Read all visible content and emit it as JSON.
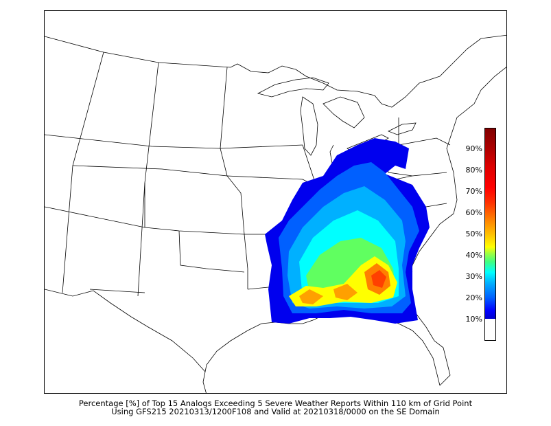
{
  "caption": {
    "line1": "Percentage [%] of Top 15 Analogs Exceeding 5 Severe Weather Reports Within 110 km of Grid Point",
    "line2": "Using GFS215 20210313/1200F108 and Valid at 20210318/0000 on the SE Domain"
  },
  "colorbar": {
    "labels": [
      "90%",
      "80%",
      "70%",
      "60%",
      "50%",
      "40%",
      "30%",
      "20%",
      "10%"
    ],
    "colors": {
      "low": "#0000cc",
      "blue": "#0060ff",
      "cyan": "#00ffff",
      "green": "#40ff80",
      "yellow": "#ffff00",
      "orange": "#ff8000",
      "red": "#ff0000",
      "dark_red": "#800000"
    }
  },
  "map": {
    "region": "Eastern United States",
    "field": "analog severe weather probability"
  }
}
